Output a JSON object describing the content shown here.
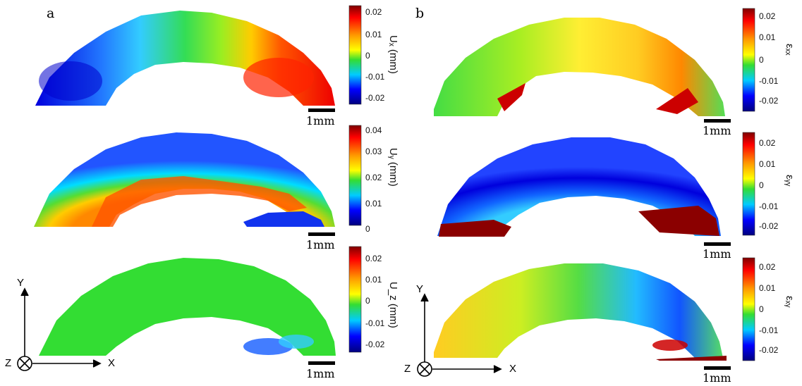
{
  "figure": {
    "panels": [
      {
        "letter": "a"
      },
      {
        "letter": "b"
      }
    ],
    "left_maps": [
      {
        "quantity_label": "Uₓ (mm)",
        "ticks": [
          "0.02",
          "0.01",
          "0",
          "-0.01",
          "-0.02"
        ],
        "scale_label": "1mm"
      },
      {
        "quantity_label": "Uᵧ (mm)",
        "ticks": [
          "0.04",
          "0.03",
          "0.02",
          "0.01",
          "0"
        ],
        "scale_label": "1mm"
      },
      {
        "quantity_label": "U_z (mm)",
        "ticks": [
          "0.02",
          "0.01",
          "0",
          "-0.01",
          "-0.02"
        ],
        "scale_label": "1mm"
      }
    ],
    "right_maps": [
      {
        "quantity_label": "εₓₓ",
        "ticks": [
          "0.02",
          "0.01",
          "0",
          "-0.01",
          "-0.02"
        ],
        "scale_label": "1mm"
      },
      {
        "quantity_label": "εᵧᵧ",
        "ticks": [
          "0.02",
          "0.01",
          "0",
          "-0.01",
          "-0.02"
        ],
        "scale_label": "1mm"
      },
      {
        "quantity_label": "εₓᵧ",
        "ticks": [
          "0.02",
          "0.01",
          "0",
          "-0.01",
          "-0.02"
        ],
        "scale_label": "1mm"
      }
    ],
    "axes_left": {
      "y": "Y",
      "x": "X",
      "z": "Z"
    },
    "axes_right": {
      "y": "Y",
      "x": "X",
      "z": "Z"
    },
    "colormap": [
      "#00007f",
      "#0000ff",
      "#00bfff",
      "#00ff80",
      "#00e000",
      "#ffff00",
      "#ff8000",
      "#ff0000",
      "#7f0000"
    ]
  }
}
